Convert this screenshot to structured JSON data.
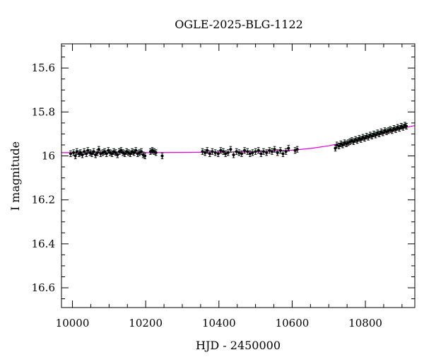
{
  "chart_data": {
    "type": "scatter",
    "title": "OGLE-2025-BLG-1122",
    "xlabel": "HJD - 2450000",
    "ylabel": "I magnitude",
    "xlim": [
      9970,
      10935
    ],
    "ylim": [
      16.69,
      15.49
    ],
    "y_inverted": true,
    "x_major_ticks": [
      10000,
      10200,
      10400,
      10600,
      10800
    ],
    "x_minor_step": 50,
    "y_major_ticks": [
      15.6,
      15.8,
      16.0,
      16.2,
      16.4,
      16.6
    ],
    "y_tick_labels": [
      "15.6",
      "15.8",
      "16",
      "16.2",
      "16.4",
      "16.6"
    ],
    "y_minor_step": 0.05,
    "grid": false,
    "colors": {
      "points": "#000000",
      "model": "#e000e0",
      "error_bars": "#2e8b57"
    },
    "model_curve": {
      "name": "",
      "x": [
        9970,
        10100,
        10200,
        10300,
        10400,
        10500,
        10550,
        10600,
        10650,
        10700,
        10750,
        10800,
        10850,
        10900,
        10935
      ],
      "y": [
        15.985,
        15.985,
        15.985,
        15.984,
        15.983,
        15.981,
        15.978,
        15.974,
        15.966,
        15.954,
        15.937,
        15.916,
        15.894,
        15.874,
        15.862
      ]
    },
    "series": [
      {
        "name": "",
        "x": [
          9995,
          10003,
          10008,
          10012,
          10018,
          10022,
          10027,
          10032,
          10038,
          10042,
          10048,
          10053,
          10058,
          10063,
          10068,
          10072,
          10077,
          10083,
          10088,
          10093,
          10098,
          10103,
          10108,
          10113,
          10118,
          10123,
          10128,
          10133,
          10138,
          10143,
          10148,
          10153,
          10158,
          10163,
          10168,
          10173,
          10178,
          10183,
          10188,
          10193,
          10198,
          10213,
          10218,
          10223,
          10228,
          10245,
          10355,
          10362,
          10368,
          10375,
          10382,
          10390,
          10398,
          10405,
          10412,
          10418,
          10425,
          10432,
          10440,
          10448,
          10455,
          10462,
          10470,
          10478,
          10485,
          10492,
          10500,
          10508,
          10515,
          10522,
          10530,
          10538,
          10545,
          10552,
          10560,
          10568,
          10575,
          10583,
          10590,
          10608,
          10614,
          10718,
          10722,
          10728,
          10733,
          10738,
          10743,
          10748,
          10753,
          10758,
          10763,
          10768,
          10773,
          10778,
          10783,
          10788,
          10793,
          10798,
          10803,
          10808,
          10813,
          10818,
          10823,
          10828,
          10833,
          10838,
          10843,
          10848,
          10853,
          10858,
          10863,
          10868,
          10873,
          10878,
          10883,
          10888,
          10893,
          10898,
          10903,
          10908,
          10912
        ],
        "y": [
          15.99,
          15.985,
          16.0,
          15.98,
          15.99,
          15.985,
          15.995,
          15.98,
          15.99,
          15.975,
          15.985,
          15.99,
          15.98,
          15.995,
          15.985,
          15.97,
          15.99,
          15.985,
          15.98,
          15.99,
          15.975,
          15.985,
          15.99,
          15.98,
          15.985,
          15.995,
          15.98,
          15.975,
          15.985,
          15.99,
          15.98,
          15.985,
          15.99,
          15.98,
          15.985,
          15.975,
          15.99,
          15.985,
          15.98,
          15.995,
          16.0,
          15.98,
          15.975,
          15.98,
          15.985,
          16.0,
          15.98,
          15.985,
          15.975,
          15.99,
          15.98,
          15.985,
          15.99,
          15.975,
          15.98,
          15.99,
          15.985,
          15.97,
          15.995,
          15.98,
          15.985,
          15.99,
          15.975,
          15.98,
          15.99,
          15.985,
          15.98,
          15.975,
          15.99,
          15.98,
          15.985,
          15.975,
          15.98,
          15.97,
          15.985,
          15.975,
          15.99,
          15.98,
          15.965,
          15.975,
          15.97,
          15.965,
          15.95,
          15.955,
          15.945,
          15.95,
          15.94,
          15.945,
          15.94,
          15.935,
          15.93,
          15.935,
          15.925,
          15.93,
          15.92,
          15.925,
          15.915,
          15.92,
          15.91,
          15.915,
          15.905,
          15.91,
          15.9,
          15.905,
          15.895,
          15.9,
          15.89,
          15.895,
          15.885,
          15.89,
          15.885,
          15.88,
          15.885,
          15.875,
          15.88,
          15.87,
          15.875,
          15.865,
          15.87,
          15.86,
          15.865
        ]
      }
    ]
  }
}
